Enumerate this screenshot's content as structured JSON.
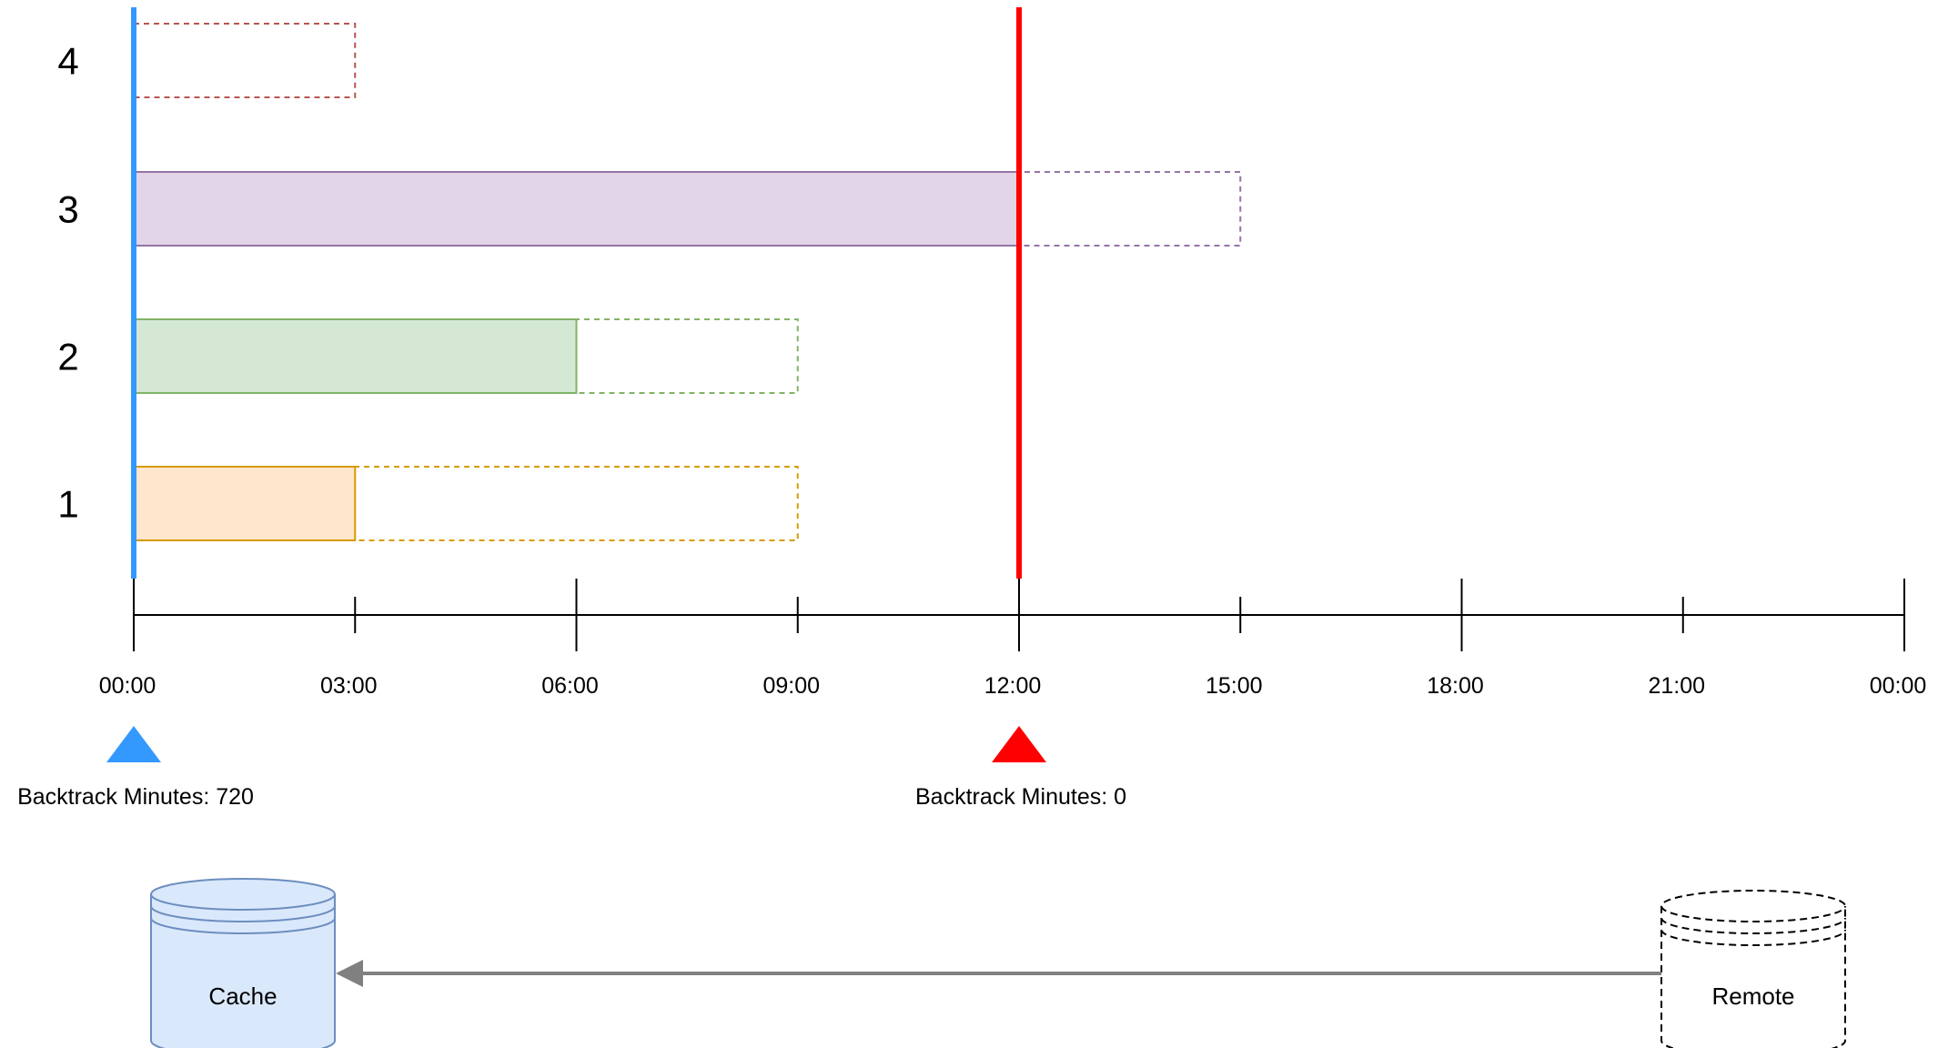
{
  "rows": [
    {
      "label": "1",
      "filled_end_hours": 3,
      "dashed_end_hours": 9,
      "fill": "#ffe6cc",
      "stroke": "#d79b00"
    },
    {
      "label": "2",
      "filled_end_hours": 6,
      "dashed_end_hours": 9,
      "fill": "#d5e8d4",
      "stroke": "#82b366"
    },
    {
      "label": "3",
      "filled_end_hours": 12,
      "dashed_end_hours": 15,
      "fill": "#e1d5e7",
      "stroke": "#9673a6"
    },
    {
      "label": "4",
      "filled_end_hours": 0,
      "dashed_end_hours": 3,
      "fill": "none",
      "stroke": "#b85450"
    }
  ],
  "axis": {
    "tick_labels": [
      "00:00",
      "03:00",
      "06:00",
      "09:00",
      "12:00",
      "15:00",
      "18:00",
      "21:00",
      "00:00"
    ],
    "range_hours": [
      0,
      24
    ]
  },
  "markers": [
    {
      "id": "blue",
      "at_hours": 0,
      "color": "#3399ff",
      "caption": "Backtrack Minutes: 720"
    },
    {
      "id": "red",
      "at_hours": 12,
      "color": "#ff0000",
      "caption": "Backtrack Minutes: 0"
    }
  ],
  "storage": {
    "cache": {
      "label": "Cache",
      "fill": "#dae8fc",
      "stroke": "#6c8ebf"
    },
    "remote": {
      "label": "Remote",
      "fill": "#ffffff",
      "stroke": "#000000"
    },
    "arrow_color": "#808080"
  }
}
